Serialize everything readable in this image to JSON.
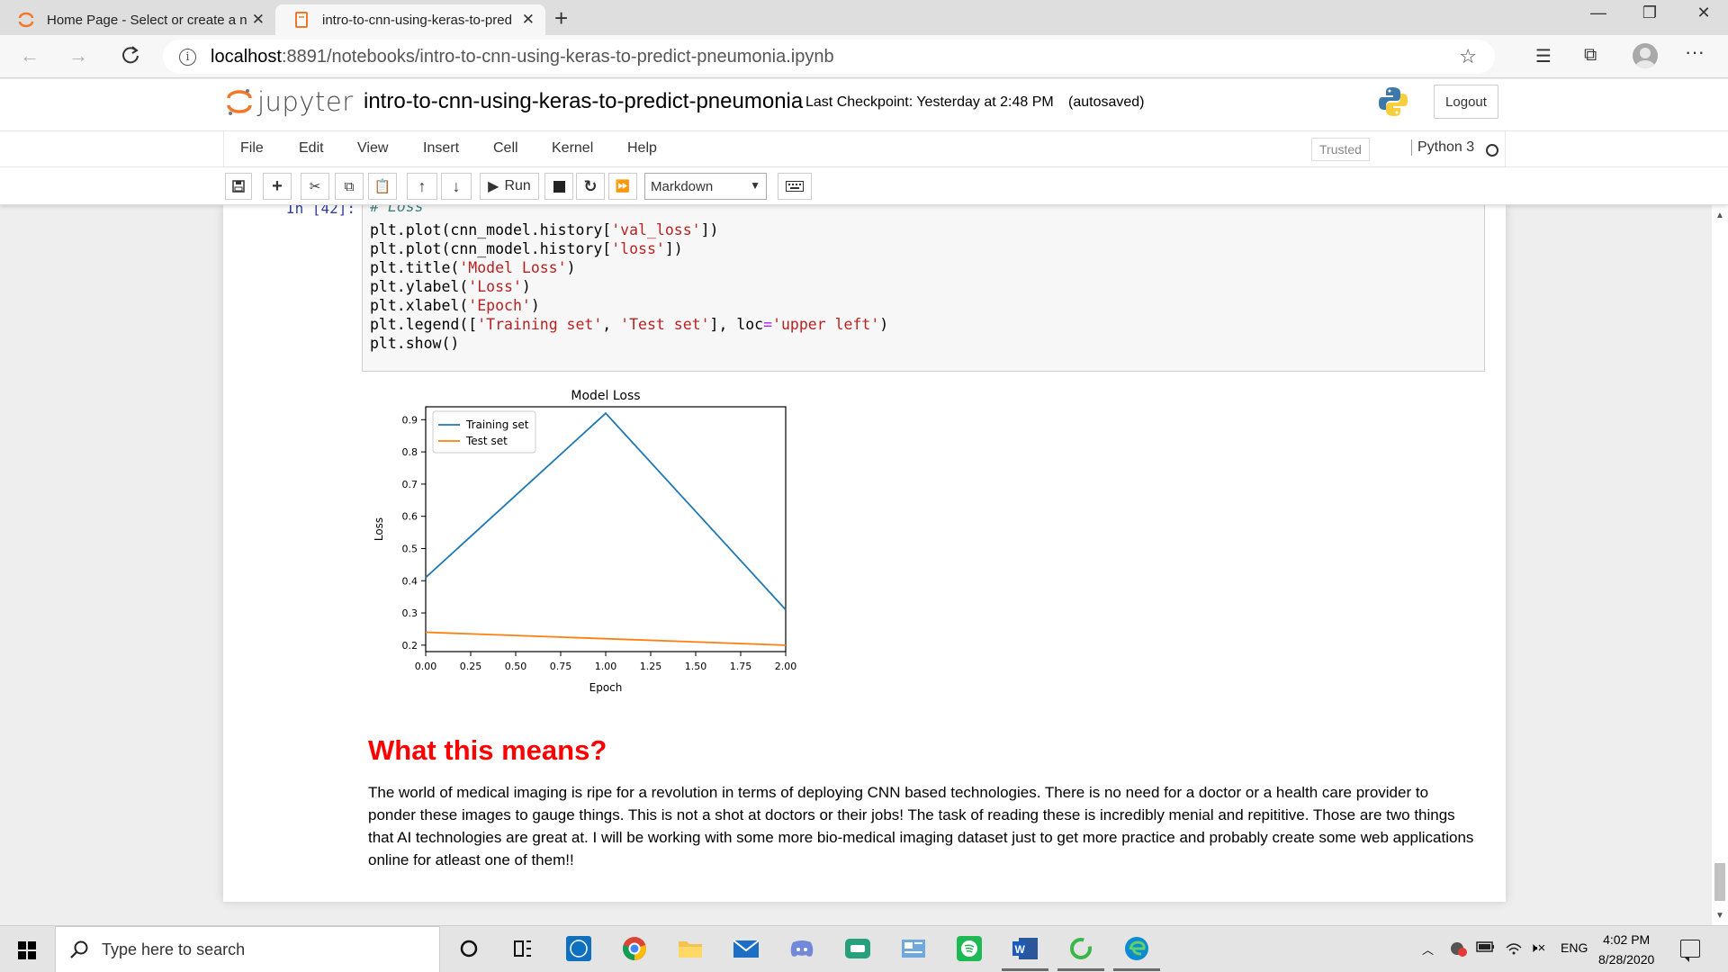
{
  "browser": {
    "tabs": [
      {
        "title": "Home Page - Select or create a n",
        "active": false
      },
      {
        "title": "intro-to-cnn-using-keras-to-pred",
        "active": true
      }
    ],
    "new_tab": "+",
    "url_host": "localhost",
    "url_rest": ":8891/notebooks/intro-to-cnn-using-keras-to-predict-pneumonia.ipynb"
  },
  "jupyter": {
    "logo_text": "jupyter",
    "notebook_name": "intro-to-cnn-using-keras-to-predict-pneumonia",
    "checkpoint": "Last Checkpoint: Yesterday at 2:48 PM",
    "autosave": "(autosaved)",
    "logout": "Logout",
    "menu": [
      "File",
      "Edit",
      "View",
      "Insert",
      "Cell",
      "Kernel",
      "Help"
    ],
    "trusted": "Trusted",
    "kernel": "Python 3",
    "toolbar": {
      "run_label": "Run",
      "cell_type": "Markdown"
    }
  },
  "cell": {
    "prompt": "In [42]:",
    "comment": "# Loss",
    "code_lines": [
      [
        [
          "plt.plot(cnn_model.history[",
          ""
        ],
        [
          "'val_loss'",
          "s"
        ],
        [
          "])",
          ""
        ]
      ],
      [
        [
          "plt.plot(cnn_model.history[",
          ""
        ],
        [
          "'loss'",
          "s"
        ],
        [
          "])",
          ""
        ]
      ],
      [
        [
          "plt.title(",
          ""
        ],
        [
          "'Model Loss'",
          "s"
        ],
        [
          ")",
          ""
        ]
      ],
      [
        [
          "plt.ylabel(",
          ""
        ],
        [
          "'Loss'",
          "s"
        ],
        [
          ")",
          ""
        ]
      ],
      [
        [
          "plt.xlabel(",
          ""
        ],
        [
          "'Epoch'",
          "s"
        ],
        [
          ")",
          ""
        ]
      ],
      [
        [
          "plt.legend([",
          ""
        ],
        [
          "'Training set'",
          "s"
        ],
        [
          ", ",
          ""
        ],
        [
          "'Test set'",
          "s"
        ],
        [
          "], loc",
          ""
        ],
        [
          "=",
          "o"
        ],
        [
          "'upper left'",
          "s"
        ],
        [
          ")",
          ""
        ]
      ],
      [
        [
          "plt.show()",
          ""
        ]
      ]
    ]
  },
  "chart_data": {
    "type": "line",
    "title": "Model Loss",
    "xlabel": "Epoch",
    "ylabel": "Loss",
    "x": [
      0,
      1,
      2
    ],
    "xlim": [
      0,
      2
    ],
    "ylim": [
      0.18,
      0.94
    ],
    "xticks": [
      "0.00",
      "0.25",
      "0.50",
      "0.75",
      "1.00",
      "1.25",
      "1.50",
      "1.75",
      "2.00"
    ],
    "yticks": [
      "0.2",
      "0.3",
      "0.4",
      "0.5",
      "0.6",
      "0.7",
      "0.8",
      "0.9"
    ],
    "series": [
      {
        "name": "Training set",
        "values": [
          0.41,
          0.92,
          0.31
        ],
        "color": "#1f77b4"
      },
      {
        "name": "Test set",
        "values": [
          0.24,
          0.22,
          0.2
        ],
        "color": "#ff7f0e"
      }
    ],
    "legend_position": "upper left",
    "grid": false
  },
  "markdown": {
    "heading": "What this means?",
    "paragraph": "The world of medical imaging is ripe for a revolution in terms of deploying CNN based technologies. There is no need for a doctor or a health care provider to ponder these images to gauge things. This is not a shot at doctors or their jobs! The task of reading these is incredibly menial and repititive. Those are two things that AI technologies are great at. I will be working with some more bio-medical imaging dataset just to get more practice and probably create some web applications online for atleast one of them!!"
  },
  "taskbar": {
    "search_placeholder": "Type here to search",
    "language": "ENG",
    "time": "4:02 PM",
    "date": "8/28/2020",
    "apps": [
      "cortana-icon",
      "task-view-icon",
      "dell-icon",
      "chrome-icon",
      "file-explorer-icon",
      "mail-icon",
      "discord-icon",
      "game-icon",
      "news-icon",
      "spotify-icon",
      "word-icon",
      "jupyter-loading-icon",
      "edge-icon"
    ]
  },
  "colors": {
    "heading_red": "#ff0000",
    "prompt_blue": "#303f9f",
    "string_red": "#ba2121"
  }
}
